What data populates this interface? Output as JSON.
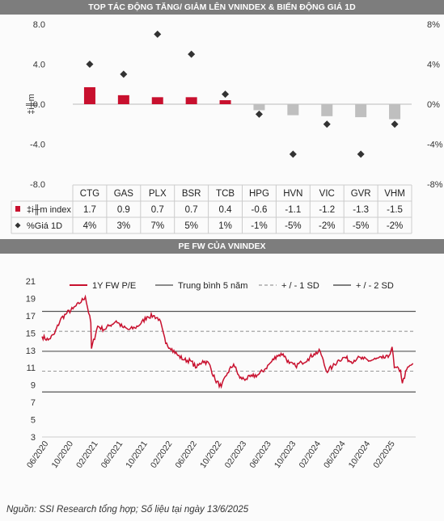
{
  "top_title": "TOP TÁC ĐỘNG TĂNG/ GIẢM LÊN VNINDEX & BIẾN ĐỘNG GIÁ 1D",
  "bottom_title": "PE FW CỦA VNINDEX",
  "source_note": "Nguồn: SSI Research tổng hợp; Số liệu tại ngày 13/6/2025",
  "chart_data": [
    {
      "type": "bar",
      "categories": [
        "CTG",
        "GAS",
        "PLX",
        "BSR",
        "TCB",
        "HPG",
        "HVN",
        "VIC",
        "GVR",
        "VHM"
      ],
      "series": [
        {
          "name": "‡i╫m index",
          "axis": "left",
          "color": "#c8102e",
          "negative_color": "#bfbfbf",
          "values": [
            1.7,
            0.9,
            0.7,
            0.7,
            0.4,
            -0.6,
            -1.1,
            -1.2,
            -1.3,
            -1.5
          ]
        },
        {
          "name": "%Giá 1D",
          "axis": "right",
          "marker": "diamond",
          "color": "#333333",
          "values": [
            4,
            3,
            7,
            5,
            1,
            -1,
            -5,
            -2,
            -5,
            -2
          ]
        }
      ],
      "table_rows": [
        {
          "label": "‡i╫m index",
          "cells": [
            "1.7",
            "0.9",
            "0.7",
            "0.7",
            "0.4",
            "-0.6",
            "-1.1",
            "-1.2",
            "-1.3",
            "-1.5"
          ]
        },
        {
          "label": "%Giá 1D",
          "cells": [
            "4%",
            "3%",
            "7%",
            "5%",
            "1%",
            "-1%",
            "-5%",
            "-2%",
            "-5%",
            "-2%"
          ]
        }
      ],
      "ylabel": "‡i╫m",
      "ylim": [
        -8,
        8
      ],
      "yticks": [
        "8.0",
        "4.0",
        "0.0",
        "-4.0",
        "-8.0"
      ],
      "y2lim": [
        -8,
        8
      ],
      "y2ticks": [
        "8%",
        "4%",
        "0%",
        "-4%",
        "-8%"
      ]
    },
    {
      "type": "line",
      "series": [
        {
          "name": "1Y FW P/E",
          "color": "#c8102e"
        }
      ],
      "reference_lines": [
        {
          "name": "Trung bình 5 năm",
          "value": 12.9,
          "style": "solid",
          "color": "#666666"
        },
        {
          "name": "+ / - 1 SD",
          "values": [
            15.2,
            10.6
          ],
          "style": "dashed",
          "color": "#999999"
        },
        {
          "name": "+ / - 2 SD",
          "values": [
            17.5,
            8.2
          ],
          "style": "solid",
          "color": "#555555"
        }
      ],
      "x_tick_labels": [
        "06/2020",
        "10/2020",
        "02/2021",
        "06/2021",
        "10/2021",
        "02/2022",
        "06/2022",
        "10/2022",
        "02/2023",
        "06/2023",
        "10/2023",
        "02/2024",
        "06/2024",
        "10/2024",
        "02/2025"
      ],
      "ylim": [
        3,
        21
      ],
      "yticks": [
        "21",
        "19",
        "17",
        "15",
        "13",
        "11",
        "9",
        "7",
        "5",
        "3"
      ],
      "key_points": [
        {
          "x": "2020-06",
          "y": 14.6
        },
        {
          "x": "2020-07",
          "y": 14.2
        },
        {
          "x": "2020-08",
          "y": 14.9
        },
        {
          "x": "2020-09",
          "y": 16.6
        },
        {
          "x": "2020-10",
          "y": 17.3
        },
        {
          "x": "2020-11",
          "y": 17.8
        },
        {
          "x": "2020-12",
          "y": 18.4
        },
        {
          "x": "2021-01",
          "y": 19.2
        },
        {
          "x": "2021-01-28",
          "y": 16.2
        },
        {
          "x": "2021-02",
          "y": 13.2
        },
        {
          "x": "2021-03",
          "y": 15.8
        },
        {
          "x": "2021-04",
          "y": 15.4
        },
        {
          "x": "2021-05",
          "y": 15.9
        },
        {
          "x": "2021-06",
          "y": 16.4
        },
        {
          "x": "2021-07",
          "y": 15.7
        },
        {
          "x": "2021-08",
          "y": 15.4
        },
        {
          "x": "2021-09",
          "y": 15.6
        },
        {
          "x": "2021-10",
          "y": 16.1
        },
        {
          "x": "2021-11",
          "y": 16.9
        },
        {
          "x": "2021-12",
          "y": 17.0
        },
        {
          "x": "2022-01",
          "y": 16.6
        },
        {
          "x": "2022-02",
          "y": 13.8
        },
        {
          "x": "2022-03",
          "y": 13.2
        },
        {
          "x": "2022-04",
          "y": 12.4
        },
        {
          "x": "2022-05",
          "y": 11.9
        },
        {
          "x": "2022-06",
          "y": 11.8
        },
        {
          "x": "2022-07",
          "y": 11.0
        },
        {
          "x": "2022-08",
          "y": 11.8
        },
        {
          "x": "2022-09",
          "y": 11.5
        },
        {
          "x": "2022-10",
          "y": 9.6
        },
        {
          "x": "2022-11",
          "y": 8.8
        },
        {
          "x": "2022-12",
          "y": 10.4
        },
        {
          "x": "2023-01",
          "y": 11.4
        },
        {
          "x": "2023-02",
          "y": 9.8
        },
        {
          "x": "2023-03",
          "y": 9.7
        },
        {
          "x": "2023-04",
          "y": 10.0
        },
        {
          "x": "2023-05",
          "y": 10.2
        },
        {
          "x": "2023-06",
          "y": 10.8
        },
        {
          "x": "2023-07",
          "y": 11.6
        },
        {
          "x": "2023-08",
          "y": 12.4
        },
        {
          "x": "2023-09",
          "y": 12.6
        },
        {
          "x": "2023-10",
          "y": 11.5
        },
        {
          "x": "2023-11",
          "y": 11.2
        },
        {
          "x": "2023-12",
          "y": 11.6
        },
        {
          "x": "2024-01",
          "y": 12.0
        },
        {
          "x": "2024-02",
          "y": 12.6
        },
        {
          "x": "2024-03",
          "y": 12.9
        },
        {
          "x": "2024-04",
          "y": 10.6
        },
        {
          "x": "2024-05",
          "y": 11.1
        },
        {
          "x": "2024-06",
          "y": 11.9
        },
        {
          "x": "2024-07",
          "y": 12.2
        },
        {
          "x": "2024-08",
          "y": 11.7
        },
        {
          "x": "2024-09",
          "y": 12.1
        },
        {
          "x": "2024-10",
          "y": 12.0
        },
        {
          "x": "2024-11",
          "y": 11.8
        },
        {
          "x": "2024-12",
          "y": 12.0
        },
        {
          "x": "2025-01",
          "y": 12.1
        },
        {
          "x": "2025-02",
          "y": 12.2
        },
        {
          "x": "2025-02-20",
          "y": 13.4
        },
        {
          "x": "2025-03",
          "y": 11.0
        },
        {
          "x": "2025-04",
          "y": 10.7
        },
        {
          "x": "2025-04-10",
          "y": 9.2
        },
        {
          "x": "2025-05",
          "y": 10.8
        },
        {
          "x": "2025-06",
          "y": 11.5
        }
      ]
    }
  ]
}
